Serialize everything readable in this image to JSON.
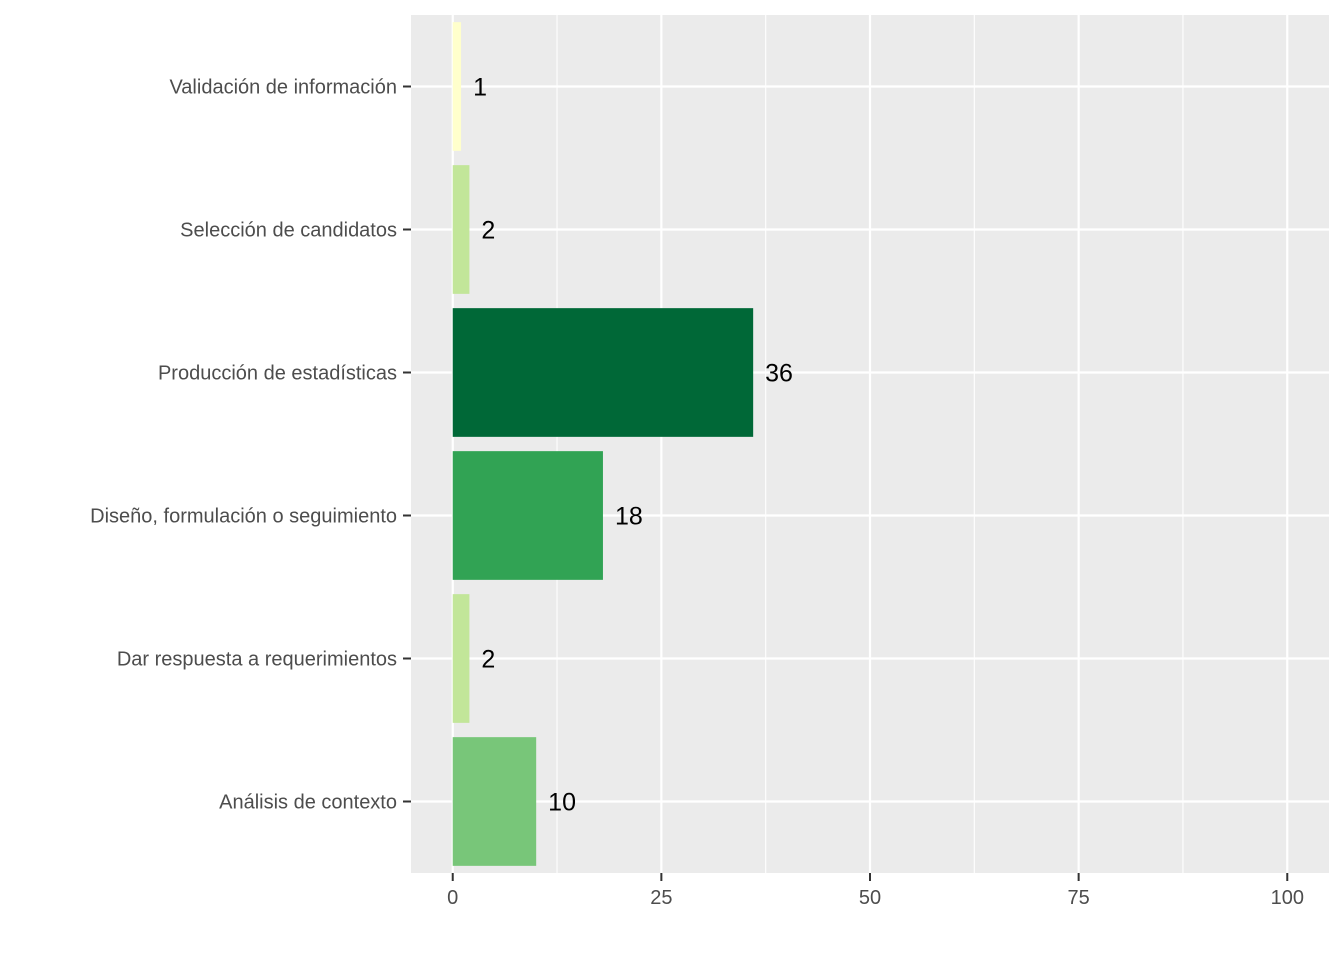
{
  "chart_data": {
    "type": "bar",
    "orientation": "horizontal",
    "title": "",
    "xlabel": "",
    "ylabel": "",
    "categories": [
      "Validación de información",
      "Selección de candidatos",
      "Producción de estadísticas",
      "Diseño, formulación o seguimiento",
      "Dar  respuesta a requerimientos",
      "Análisis de contexto"
    ],
    "values": [
      1,
      2,
      36,
      18,
      2,
      10
    ],
    "data_labels": [
      "1",
      "2",
      "36",
      "18",
      "2",
      "10"
    ],
    "bar_colors": [
      "#ffffcc",
      "#c2e699",
      "#006837",
      "#31a354",
      "#c2e699",
      "#78c679"
    ],
    "xlim": [
      -5,
      105
    ],
    "x_ticks": [
      0,
      25,
      50,
      75,
      100
    ],
    "x_tick_labels": [
      "0",
      "25",
      "50",
      "75",
      "100"
    ],
    "grid": true,
    "legend": "none",
    "panel_background": "#ebebeb",
    "grid_color": "#ffffff"
  }
}
